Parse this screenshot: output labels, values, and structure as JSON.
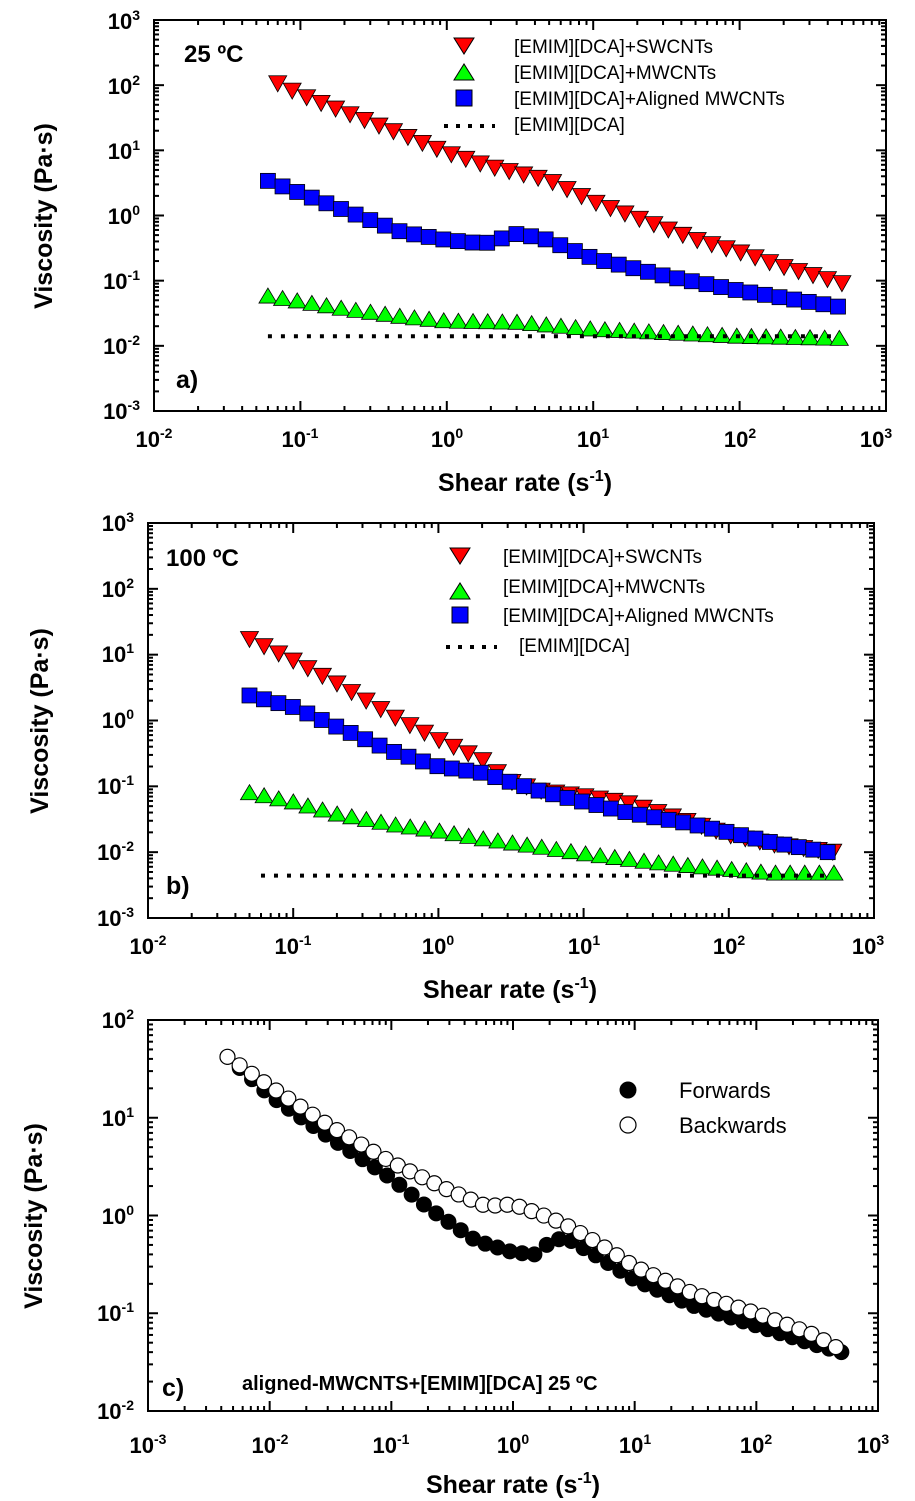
{
  "figure": {
    "panels": [
      {
        "id": "a",
        "panel_label": "a)",
        "condition": "25 ºC",
        "xlabel": "Shear rate (s-1)",
        "ylabel": "Viscosity (Pa·s)",
        "x_scale": "log",
        "y_scale": "log",
        "xlim_exp": [
          -2,
          3
        ],
        "ylim_exp": [
          -3,
          3
        ],
        "x_ticks": [
          "10-2",
          "10-1",
          "100",
          "101",
          "102",
          "103"
        ],
        "y_ticks": [
          "10-3",
          "10-2",
          "10-1",
          "100",
          "101",
          "102",
          "103"
        ],
        "legend": [
          "[EMIM][DCA]+SWCNTs",
          "[EMIM][DCA]+MWCNTs",
          "[EMIM][DCA]+Aligned MWCNTs",
          "[EMIM][DCA]"
        ],
        "legend_placement": "top-right"
      },
      {
        "id": "b",
        "panel_label": "b)",
        "condition": "100 ºC",
        "xlabel": "Shear rate (s-1)",
        "ylabel": "Viscosity (Pa·s)",
        "x_scale": "log",
        "y_scale": "log",
        "xlim_exp": [
          -2,
          3
        ],
        "ylim_exp": [
          -3,
          3
        ],
        "x_ticks": [
          "10-2",
          "10-1",
          "100",
          "101",
          "102",
          "103"
        ],
        "y_ticks": [
          "10-3",
          "10-2",
          "10-1",
          "100",
          "101",
          "102",
          "103"
        ],
        "legend": [
          "[EMIM][DCA]+SWCNTs",
          "[EMIM][DCA]+MWCNTs",
          "[EMIM][DCA]+Aligned MWCNTs",
          "[EMIM][DCA]"
        ],
        "legend_placement": "top-right"
      },
      {
        "id": "c",
        "panel_label": "c)",
        "note": "aligned-MWCNTS+[EMIM][DCA] 25 ºC",
        "xlabel": "Shear rate (s-1)",
        "ylabel": "Viscosity (Pa·s)",
        "x_scale": "log",
        "y_scale": "log",
        "xlim_exp": [
          -3,
          3
        ],
        "ylim_exp": [
          -2,
          2
        ],
        "x_ticks": [
          "10-3",
          "10-2",
          "10-1",
          "100",
          "101",
          "102",
          "103"
        ],
        "y_ticks": [
          "10-2",
          "10-1",
          "100",
          "101",
          "102"
        ],
        "legend": [
          "Forwards",
          "Backwards"
        ],
        "legend_placement": "top-right"
      }
    ]
  },
  "chart_data": [
    {
      "type": "scatter",
      "title": "25 ºC",
      "xlabel": "Shear rate (s-1)",
      "ylabel": "Viscosity (Pa·s)",
      "x_scale": "log",
      "y_scale": "log",
      "xlim": [
        0.01,
        1000
      ],
      "ylim": [
        0.001,
        1000
      ],
      "grid": false,
      "legend_placement": "top-right",
      "series": [
        {
          "name": "[EMIM][DCA]+SWCNTs",
          "marker": "triangle-down",
          "color": "#ff0000",
          "start_x": 0.07,
          "end_x": 500,
          "anchors": [
            [
              0.07,
              105
            ],
            [
              0.1,
              70
            ],
            [
              0.2,
              38
            ],
            [
              0.5,
              17
            ],
            [
              1,
              9
            ],
            [
              2,
              5.5
            ],
            [
              5,
              3.4
            ],
            [
              10,
              1.6
            ],
            [
              20,
              0.9
            ],
            [
              50,
              0.42
            ],
            [
              100,
              0.27
            ],
            [
              200,
              0.16
            ],
            [
              500,
              0.09
            ]
          ]
        },
        {
          "name": "[EMIM][DCA]+MWCNTs",
          "marker": "triangle-up",
          "color": "#00ff00",
          "start_x": 0.06,
          "end_x": 480,
          "anchors": [
            [
              0.06,
              0.058
            ],
            [
              0.1,
              0.048
            ],
            [
              0.2,
              0.037
            ],
            [
              0.5,
              0.028
            ],
            [
              1,
              0.024
            ],
            [
              3,
              0.023
            ],
            [
              10,
              0.018
            ],
            [
              30,
              0.016
            ],
            [
              100,
              0.014
            ],
            [
              480,
              0.013
            ]
          ]
        },
        {
          "name": "[EMIM][DCA]+Aligned MWCNTs",
          "marker": "square",
          "color": "#0000ff",
          "start_x": 0.06,
          "end_x": 470,
          "anchors": [
            [
              0.06,
              3.4
            ],
            [
              0.1,
              2.2
            ],
            [
              0.2,
              1.2
            ],
            [
              0.5,
              0.55
            ],
            [
              1,
              0.42
            ],
            [
              1.8,
              0.37
            ],
            [
              3,
              0.52
            ],
            [
              4.5,
              0.45
            ],
            [
              10,
              0.22
            ],
            [
              30,
              0.12
            ],
            [
              100,
              0.07
            ],
            [
              470,
              0.04
            ]
          ]
        },
        {
          "name": "[EMIM][DCA]",
          "marker": "dotted-line",
          "color": "#000000",
          "start_x": 0.06,
          "end_x": 480,
          "anchors": [
            [
              0.06,
              0.014
            ],
            [
              480,
              0.014
            ]
          ]
        }
      ]
    },
    {
      "type": "scatter",
      "title": "100 ºC",
      "xlabel": "Shear rate (s-1)",
      "ylabel": "Viscosity (Pa·s)",
      "x_scale": "log",
      "y_scale": "log",
      "xlim": [
        0.01,
        1000
      ],
      "ylim": [
        0.001,
        1000
      ],
      "grid": false,
      "legend_placement": "top-right",
      "series": [
        {
          "name": "[EMIM][DCA]+SWCNTs",
          "marker": "triangle-down",
          "color": "#ff0000",
          "start_x": 0.05,
          "end_x": 520,
          "anchors": [
            [
              0.05,
              17
            ],
            [
              0.1,
              8
            ],
            [
              0.2,
              3.6
            ],
            [
              0.5,
              1.1
            ],
            [
              1,
              0.5
            ],
            [
              2,
              0.25
            ],
            [
              3,
              0.12
            ],
            [
              5,
              0.085
            ],
            [
              10,
              0.07
            ],
            [
              20,
              0.055
            ],
            [
              50,
              0.03
            ],
            [
              100,
              0.018
            ],
            [
              200,
              0.013
            ],
            [
              520,
              0.01
            ]
          ]
        },
        {
          "name": "[EMIM][DCA]+MWCNTs",
          "marker": "triangle-up",
          "color": "#00ff00",
          "start_x": 0.05,
          "end_x": 530,
          "anchors": [
            [
              0.05,
              0.08
            ],
            [
              0.1,
              0.058
            ],
            [
              0.2,
              0.038
            ],
            [
              0.5,
              0.026
            ],
            [
              1,
              0.021
            ],
            [
              2,
              0.016
            ],
            [
              5,
              0.012
            ],
            [
              10,
              0.0095
            ],
            [
              30,
              0.007
            ],
            [
              100,
              0.0055
            ],
            [
              200,
              0.0048
            ],
            [
              530,
              0.0048
            ]
          ]
        },
        {
          "name": "[EMIM][DCA]+Aligned MWCNTs",
          "marker": "square",
          "color": "#0000ff",
          "start_x": 0.05,
          "end_x": 480,
          "anchors": [
            [
              0.05,
              2.4
            ],
            [
              0.1,
              1.6
            ],
            [
              0.2,
              0.8
            ],
            [
              0.5,
              0.33
            ],
            [
              1,
              0.2
            ],
            [
              2,
              0.16
            ],
            [
              3,
              0.12
            ],
            [
              5,
              0.085
            ],
            [
              10,
              0.058
            ],
            [
              20,
              0.04
            ],
            [
              50,
              0.028
            ],
            [
              100,
              0.02
            ],
            [
              200,
              0.014
            ],
            [
              480,
              0.01
            ]
          ]
        },
        {
          "name": "[EMIM][DCA]",
          "marker": "dotted-line",
          "color": "#000000",
          "start_x": 0.06,
          "end_x": 480,
          "anchors": [
            [
              0.06,
              0.0044
            ],
            [
              480,
              0.0044
            ]
          ]
        }
      ]
    },
    {
      "type": "scatter",
      "title": "aligned-MWCNTS+[EMIM][DCA] 25 ºC",
      "xlabel": "Shear rate (s-1)",
      "ylabel": "Viscosity (Pa·s)",
      "x_scale": "log",
      "y_scale": "log",
      "xlim": [
        0.001,
        1000
      ],
      "ylim": [
        0.01,
        100
      ],
      "grid": false,
      "legend_placement": "top-right",
      "series": [
        {
          "name": "Forwards",
          "marker": "circle-filled",
          "color": "#000000",
          "start_x": 0.0045,
          "end_x": 500,
          "anchors": [
            [
              0.0045,
              42
            ],
            [
              0.01,
              17
            ],
            [
              0.03,
              6.5
            ],
            [
              0.1,
              2.4
            ],
            [
              0.2,
              1.2
            ],
            [
              0.5,
              0.55
            ],
            [
              1,
              0.42
            ],
            [
              1.5,
              0.4
            ],
            [
              2.2,
              0.58
            ],
            [
              3,
              0.55
            ],
            [
              5,
              0.38
            ],
            [
              10,
              0.22
            ],
            [
              30,
              0.12
            ],
            [
              100,
              0.075
            ],
            [
              300,
              0.048
            ],
            [
              500,
              0.04
            ]
          ]
        },
        {
          "name": "Backwards",
          "marker": "circle-open",
          "color": "#ffffff",
          "start_x": 0.0045,
          "end_x": 450,
          "anchors": [
            [
              0.0045,
              42
            ],
            [
              0.01,
              21
            ],
            [
              0.03,
              8.5
            ],
            [
              0.1,
              3.5
            ],
            [
              0.3,
              1.8
            ],
            [
              0.6,
              1.25
            ],
            [
              1,
              1.3
            ],
            [
              2,
              0.95
            ],
            [
              3,
              0.75
            ],
            [
              5,
              0.52
            ],
            [
              10,
              0.3
            ],
            [
              30,
              0.16
            ],
            [
              100,
              0.1
            ],
            [
              300,
              0.06
            ],
            [
              450,
              0.045
            ]
          ]
        }
      ]
    }
  ]
}
